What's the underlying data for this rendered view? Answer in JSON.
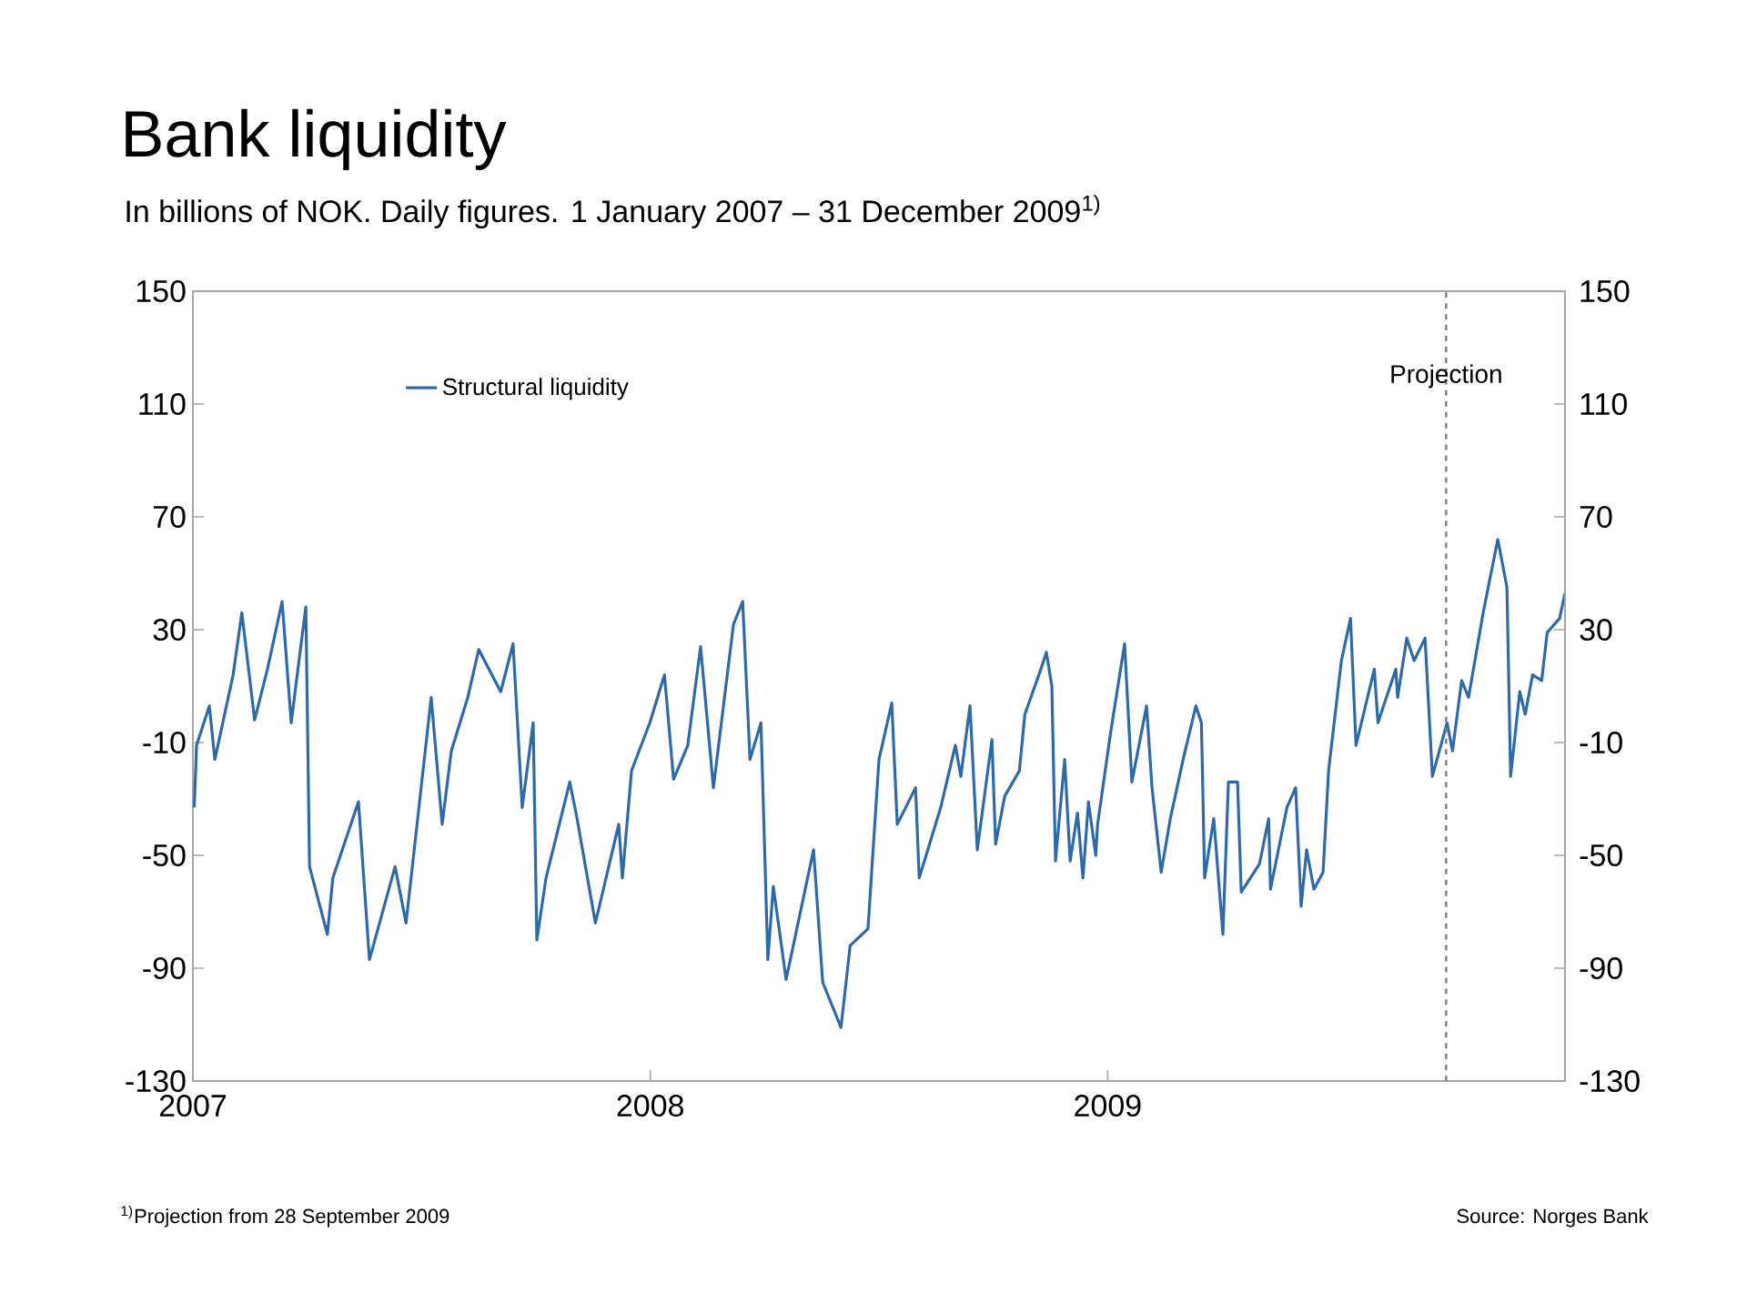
{
  "chart_data": {
    "type": "line",
    "title": "Bank liquidity",
    "subtitle": "In billions of NOK. Daily figures. 1 January 2007 – 31 December 2009$^{1)}$",
    "annotations": [
      "$^{1)}$Projection from 28 September 2009",
      "Source: Norges Bank"
    ],
    "xlim": [
      2007,
      2010
    ],
    "xticks": [
      2007,
      2008,
      2009
    ],
    "ylim": [
      -130,
      150
    ],
    "yticks": [
      -130,
      -90,
      -50,
      -10,
      30,
      70,
      110,
      150
    ],
    "y2lim": [
      -130,
      150
    ],
    "y2ticks": [
      -130,
      -90,
      -50,
      -10,
      30,
      70,
      110,
      150
    ],
    "legend": "top left",
    "line_style": "solid",
    "ref_lines": [
      {
        "axis": "x",
        "value": 2009.74,
        "label": "Projection",
        "color": "#808080",
        "line_style": "dashed"
      }
    ],
    "series": [
      {
        "name": "Structural liquidity",
        "color": "#2f6aa8",
        "x": [
          2007.003,
          2007.008,
          2007.036,
          2007.048,
          2007.088,
          2007.107,
          2007.135,
          2007.163,
          2007.195,
          2007.215,
          2007.235,
          2007.247,
          2007.255,
          2007.294,
          2007.306,
          2007.362,
          2007.386,
          2007.442,
          2007.466,
          2007.521,
          2007.545,
          2007.565,
          2007.601,
          2007.625,
          2007.673,
          2007.7,
          2007.72,
          2007.744,
          2007.752,
          2007.772,
          2007.824,
          2007.84,
          2007.88,
          2007.931,
          2007.939,
          2007.959,
          2007.999,
          2008.031,
          2008.051,
          2008.082,
          2008.11,
          2008.138,
          2008.182,
          2008.202,
          2008.218,
          2008.242,
          2008.257,
          2008.269,
          2008.297,
          2008.357,
          2008.377,
          2008.417,
          2008.437,
          2008.476,
          2008.5,
          2008.528,
          2008.54,
          2008.58,
          2008.588,
          2008.635,
          2008.667,
          2008.679,
          2008.699,
          2008.715,
          2008.747,
          2008.755,
          2008.775,
          2008.807,
          2008.819,
          2008.854,
          2008.866,
          2008.878,
          2008.886,
          2008.906,
          2008.918,
          2008.934,
          2008.946,
          2008.958,
          2008.974,
          2008.978,
          2009.006,
          2009.037,
          2009.053,
          2009.085,
          2009.097,
          2009.117,
          2009.137,
          2009.165,
          2009.193,
          2009.205,
          2009.212,
          2009.232,
          2009.252,
          2009.264,
          2009.284,
          2009.292,
          2009.332,
          2009.352,
          2009.356,
          2009.392,
          2009.411,
          2009.423,
          2009.435,
          2009.451,
          2009.471,
          2009.483,
          2009.511,
          2009.531,
          2009.543,
          2009.583,
          2009.591,
          2009.63,
          2009.634,
          2009.654,
          2009.67,
          2009.694,
          2009.71,
          2009.742,
          2009.754,
          2009.774,
          2009.789,
          2009.821,
          2009.853,
          2009.873,
          2009.881,
          2009.901,
          2009.913,
          2009.929,
          2009.949,
          2009.961,
          2009.988,
          2010.0
        ],
        "values": [
          -33,
          -11,
          3,
          -16,
          14,
          36,
          -2,
          16,
          40,
          -3,
          23,
          38,
          -54,
          -78,
          -58,
          -31,
          -87,
          -54,
          -74,
          6,
          -39,
          -13,
          6,
          23,
          8,
          25,
          -33,
          -3,
          -80,
          -58,
          -24,
          -37,
          -74,
          -39,
          -58,
          -20,
          -3,
          14,
          -23,
          -11,
          24,
          -26,
          32,
          40,
          -16,
          -3,
          -87,
          -61,
          -94,
          -48,
          -95,
          -111,
          -82,
          -76,
          -16,
          4,
          -39,
          -26,
          -58,
          -33,
          -11,
          -22,
          3,
          -48,
          -9,
          -46,
          -29,
          -20,
          0,
          16,
          22,
          10,
          -52,
          -16,
          -52,
          -35,
          -58,
          -31,
          -50,
          -39,
          -7,
          25,
          -24,
          3,
          -26,
          -56,
          -37,
          -16,
          3,
          -3,
          -58,
          -37,
          -78,
          -24,
          -24,
          -63,
          -53,
          -37,
          -62,
          -33,
          -26,
          -68,
          -48,
          -62,
          -56,
          -20,
          19,
          34,
          -11,
          16,
          -3,
          16,
          6,
          27,
          19,
          27,
          -22,
          -3,
          -13,
          12,
          6,
          36,
          62,
          45,
          -22,
          8,
          0,
          14,
          12,
          29,
          34,
          43
        ]
      }
    ]
  }
}
